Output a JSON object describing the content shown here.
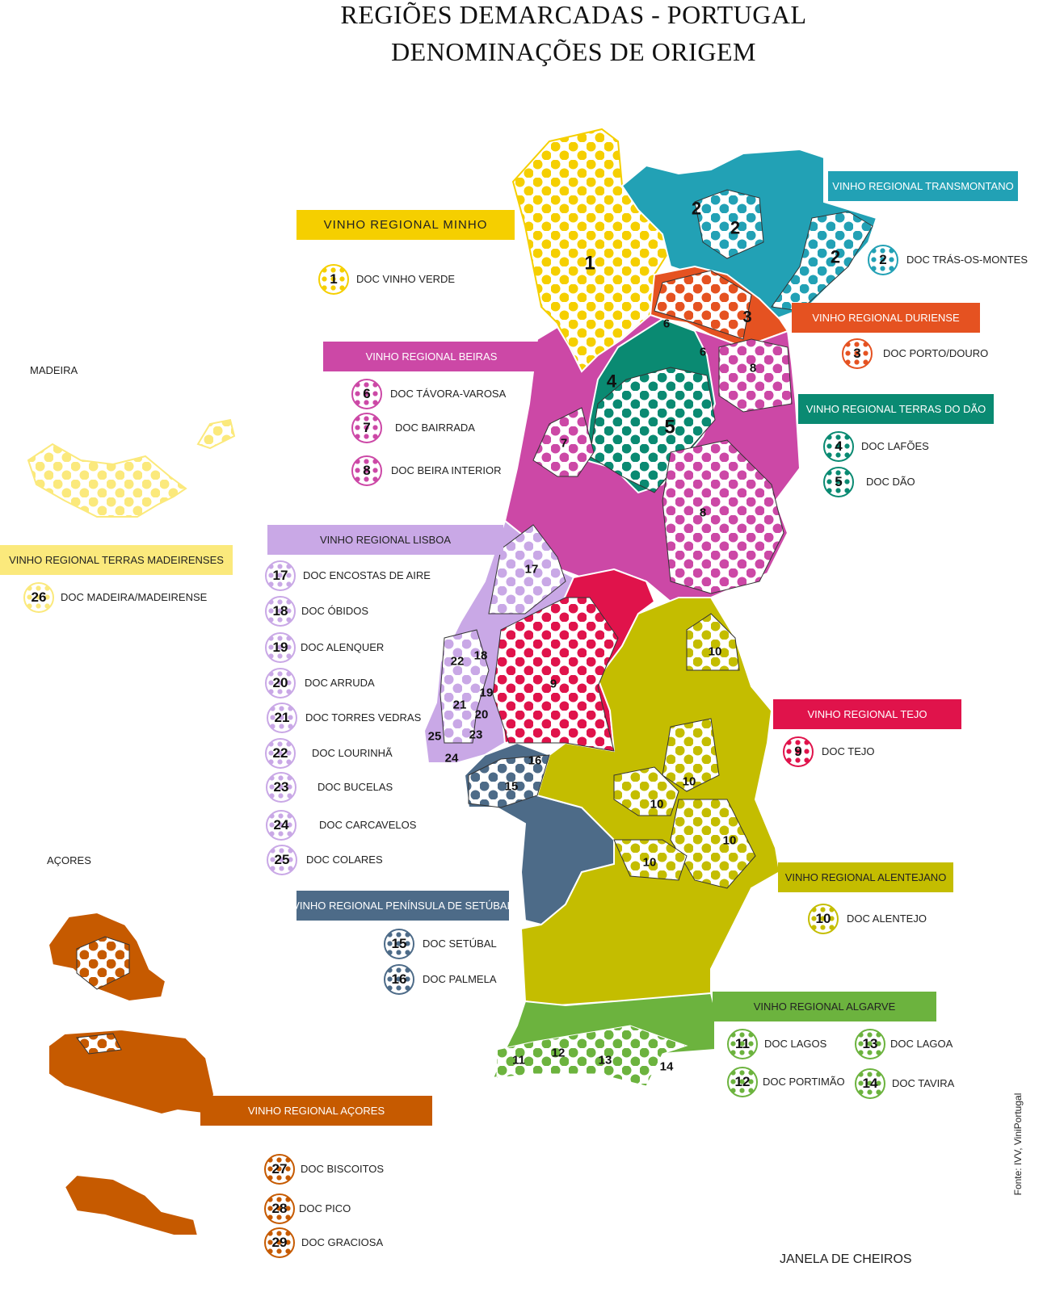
{
  "title_line1": "REGIÕES DEMARCADAS - PORTUGAL",
  "title_line2": "DENOMINAÇÕES DE ORIGEM",
  "colors": {
    "minho": "#f5cf00",
    "transmontano": "#22a1b5",
    "duriense": "#e55221",
    "beiras": "#cc48a6",
    "dao": "#0a8a72",
    "lisboa": "#c9a8e6",
    "tejo": "#e0134b",
    "alentejano": "#c4bd00",
    "setubal": "#4d6b88",
    "algarve": "#6cb33e",
    "madeira": "#fbe97c",
    "acores": "#c65a00"
  },
  "banners": [
    {
      "key": "minho",
      "label": "VINHO REGIONAL  MINHO"
    },
    {
      "key": "transmontano",
      "label": "VINHO REGIONAL TRANSMONTANO"
    },
    {
      "key": "duriense",
      "label": "VINHO REGIONAL DURIENSE"
    },
    {
      "key": "beiras",
      "label": "VINHO REGIONAL BEIRAS"
    },
    {
      "key": "dao",
      "label": "VINHO REGIONAL TERRAS DO DÃO"
    },
    {
      "key": "lisboa",
      "label": "VINHO REGIONAL LISBOA"
    },
    {
      "key": "tejo",
      "label": "VINHO REGIONAL TEJO"
    },
    {
      "key": "alentejano",
      "label": "VINHO REGIONAL ALENTEJANO"
    },
    {
      "key": "setubal",
      "label": "VINHO REGIONAL PENÍNSULA DE SETÚBAL"
    },
    {
      "key": "algarve",
      "label": "VINHO REGIONAL ALGARVE"
    },
    {
      "key": "madeira",
      "label": "VINHO REGIONAL TERRAS MADEIRENSES"
    },
    {
      "key": "acores",
      "label": "VINHO REGIONAL AÇORES"
    }
  ],
  "docs": [
    {
      "num": "1",
      "label": "DOC VINHO VERDE",
      "key": "minho"
    },
    {
      "num": "2",
      "label": "DOC TRÁS-OS-MONTES",
      "key": "transmontano"
    },
    {
      "num": "3",
      "label": "DOC PORTO/DOURO",
      "key": "duriense"
    },
    {
      "num": "6",
      "label": "DOC TÁVORA-VAROSA",
      "key": "beiras"
    },
    {
      "num": "7",
      "label": "DOC BAIRRADA",
      "key": "beiras"
    },
    {
      "num": "8",
      "label": "DOC BEIRA INTERIOR",
      "key": "beiras"
    },
    {
      "num": "4",
      "label": "DOC LAFÕES",
      "key": "dao"
    },
    {
      "num": "5",
      "label": "DOC DÃO",
      "key": "dao"
    },
    {
      "num": "26",
      "label": "DOC MADEIRA/MADEIRENSE",
      "key": "madeira"
    },
    {
      "num": "17",
      "label": "DOC ENCOSTAS DE AIRE",
      "key": "lisboa"
    },
    {
      "num": "18",
      "label": "DOC ÓBIDOS",
      "key": "lisboa"
    },
    {
      "num": "19",
      "label": "DOC ALENQUER",
      "key": "lisboa"
    },
    {
      "num": "20",
      "label": "DOC ARRUDA",
      "key": "lisboa"
    },
    {
      "num": "21",
      "label": "DOC TORRES VEDRAS",
      "key": "lisboa"
    },
    {
      "num": "22",
      "label": "DOC LOURINHÃ",
      "key": "lisboa"
    },
    {
      "num": "23",
      "label": "DOC BUCELAS",
      "key": "lisboa"
    },
    {
      "num": "24",
      "label": "DOC CARCAVELOS",
      "key": "lisboa"
    },
    {
      "num": "25",
      "label": "DOC COLARES",
      "key": "lisboa"
    },
    {
      "num": "9",
      "label": "DOC TEJO",
      "key": "tejo"
    },
    {
      "num": "10",
      "label": "DOC ALENTEJO",
      "key": "alentejano"
    },
    {
      "num": "15",
      "label": "DOC SETÚBAL",
      "key": "setubal"
    },
    {
      "num": "16",
      "label": "DOC PALMELA",
      "key": "setubal"
    },
    {
      "num": "11",
      "label": "DOC LAGOS",
      "key": "algarve"
    },
    {
      "num": "12",
      "label": "DOC PORTIMÃO",
      "key": "algarve"
    },
    {
      "num": "13",
      "label": "DOC LAGOA",
      "key": "algarve"
    },
    {
      "num": "14",
      "label": "DOC TAVIRA",
      "key": "algarve"
    },
    {
      "num": "27",
      "label": "DOC BISCOITOS",
      "key": "acores"
    },
    {
      "num": "28",
      "label": "DOC PICO",
      "key": "acores"
    },
    {
      "num": "29",
      "label": "DOC GRACIOSA",
      "key": "acores"
    }
  ],
  "map_labels": [
    "1",
    "2",
    "2",
    "2",
    "3",
    "6",
    "6",
    "4",
    "5",
    "7",
    "8",
    "8",
    "17",
    "18",
    "22",
    "19",
    "21",
    "20",
    "25",
    "23",
    "24",
    "9",
    "16",
    "15",
    "10",
    "10",
    "10",
    "10",
    "10",
    "11",
    "12",
    "13",
    "14"
  ],
  "place_labels": {
    "madeira": "MADEIRA",
    "acores": "AÇORES"
  },
  "footer": "JANELA DE CHEIROS",
  "source": "Fonte: IVV, ViniPortugal"
}
